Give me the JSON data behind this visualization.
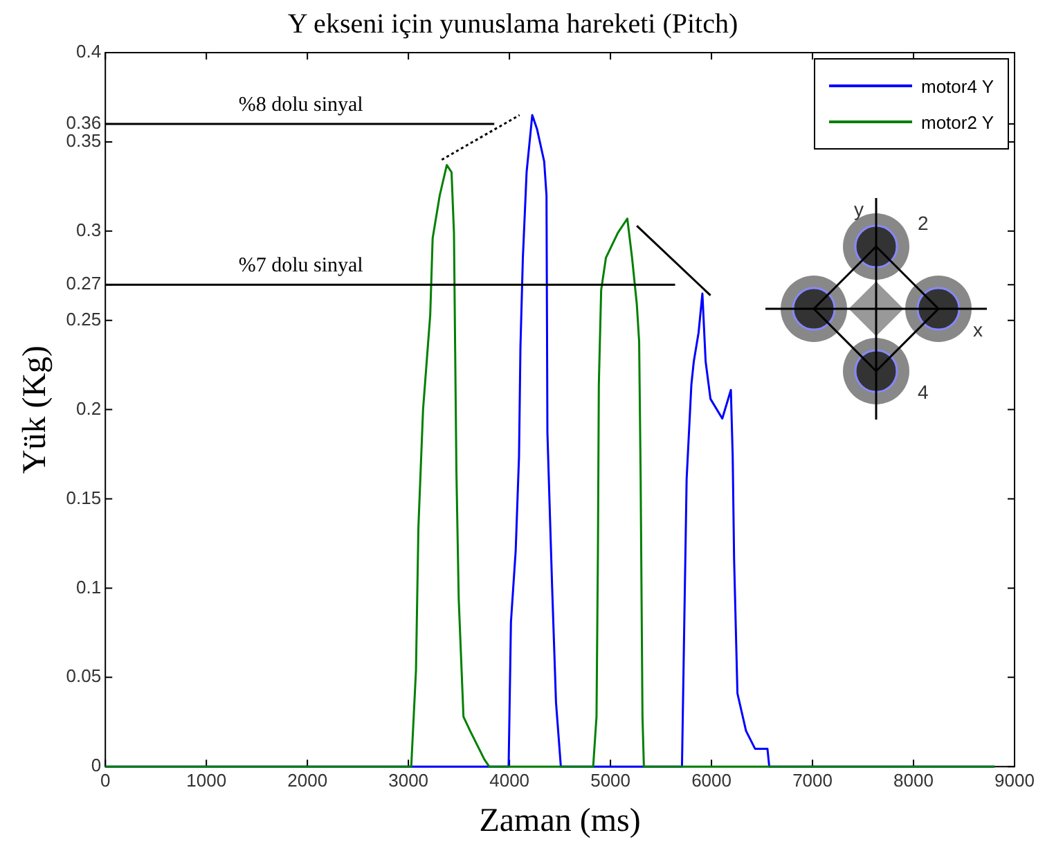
{
  "chart_data": {
    "type": "line",
    "title": "Y ekseni için yunuslama hareketi (Pitch)",
    "xlabel": "Zaman (ms)",
    "ylabel": "Yük (Kg)",
    "xlim": [
      0,
      9000
    ],
    "xticks": [
      0,
      1000,
      2000,
      3000,
      4000,
      5000,
      6000,
      7000,
      8000,
      9000
    ],
    "ylim": [
      0,
      0.4
    ],
    "yticks": [
      0,
      0.05,
      0.1,
      0.15,
      0.2,
      0.25,
      0.27,
      0.3,
      0.35,
      0.36,
      0.4
    ],
    "grid": false,
    "legend": "top right",
    "marker": "none",
    "line_style": "solid",
    "series": [
      {
        "name": "motor4 Y",
        "color": "#0000ff",
        "x": [
          0,
          3992,
          4015,
          4062,
          4095,
          4109,
          4133,
          4170,
          4226,
          4274,
          4344,
          4367,
          4376,
          4423,
          4461,
          4509,
          5708,
          5731,
          5754,
          5801,
          5825,
          5872,
          5910,
          5942,
          5990,
          6107,
          6192,
          6210,
          6224,
          6257,
          6342,
          6431,
          6554,
          6572,
          8800
        ],
        "values": [
          0,
          0,
          0.081,
          0.121,
          0.174,
          0.235,
          0.285,
          0.333,
          0.365,
          0.357,
          0.339,
          0.32,
          0.187,
          0.1,
          0.036,
          0,
          0,
          0.081,
          0.161,
          0.214,
          0.227,
          0.243,
          0.265,
          0.227,
          0.206,
          0.195,
          0.211,
          0.174,
          0.116,
          0.041,
          0.02,
          0.01,
          0.01,
          0,
          0
        ]
      },
      {
        "name": "motor2  Y",
        "color": "#008000",
        "x": [
          0,
          3028,
          3075,
          3099,
          3145,
          3216,
          3240,
          3310,
          3380,
          3427,
          3451,
          3475,
          3498,
          3545,
          3611,
          3752,
          3800,
          4829,
          4862,
          4876,
          4885,
          4908,
          4955,
          5073,
          5167,
          5214,
          5261,
          5284,
          5299,
          5317,
          5331,
          8800
        ],
        "values": [
          0,
          0,
          0.054,
          0.134,
          0.2,
          0.253,
          0.296,
          0.32,
          0.337,
          0.333,
          0.299,
          0.166,
          0.094,
          0.028,
          0.02,
          0.004,
          0,
          0,
          0.028,
          0.121,
          0.214,
          0.267,
          0.285,
          0.299,
          0.307,
          0.285,
          0.259,
          0.238,
          0.161,
          0.028,
          0,
          0
        ]
      },
      {
        "color": "#000000",
        "x": [
          0,
          3850
        ],
        "values": [
          0.36,
          0.36
        ]
      },
      {
        "color": "#000000",
        "line_style": "dotted",
        "x": [
          3330,
          4100
        ],
        "values": [
          0.34,
          0.365
        ]
      },
      {
        "color": "#000000",
        "x": [
          0,
          5640
        ],
        "values": [
          0.27,
          0.27
        ]
      },
      {
        "color": "#000000",
        "x": [
          5261,
          5990
        ],
        "values": [
          0.303,
          0.264
        ]
      }
    ],
    "annotations": [
      {
        "text": "%8 dolu sinyal",
        "y": 0.36
      },
      {
        "text": "%7 dolu sinyal",
        "y": 0.27
      },
      "y",
      "2",
      "x",
      "4"
    ]
  }
}
